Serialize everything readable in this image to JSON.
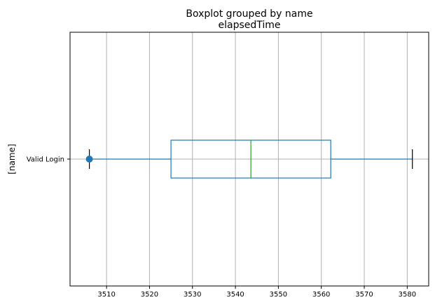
{
  "chart_data": {
    "type": "boxplot",
    "suptitle": "Boxplot grouped by name",
    "title": "elapsedTime",
    "xlabel": "",
    "ylabel": "[name]",
    "orientation": "horizontal",
    "xlim": [
      3501.5,
      3585
    ],
    "xticks": [
      3510,
      3520,
      3530,
      3540,
      3550,
      3560,
      3570,
      3580
    ],
    "grid": true,
    "categories": [
      "Valid Login"
    ],
    "boxes": [
      {
        "category": "Valid Login",
        "whisker_low": 3506,
        "q1": 3525,
        "median": 3543.6,
        "q3": 3562.2,
        "whisker_high": 3581.2,
        "fliers": [
          3506
        ]
      }
    ],
    "colors": {
      "box": "#1f77b4",
      "whisker": "#1f77b4",
      "median": "#2ca02c",
      "flier": "#1f77b4",
      "grid": "#b0b0b0"
    }
  }
}
